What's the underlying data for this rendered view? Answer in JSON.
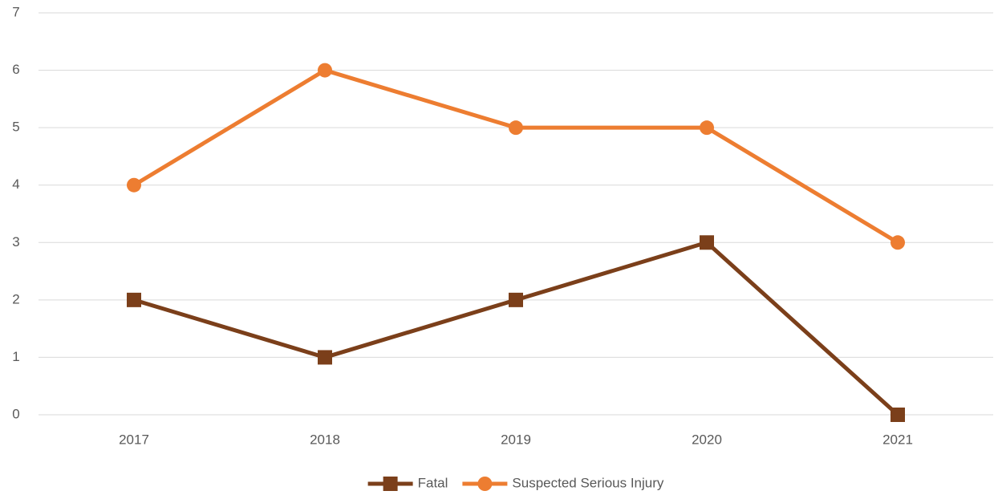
{
  "chart_data": {
    "type": "line",
    "categories": [
      "2017",
      "2018",
      "2019",
      "2020",
      "2021"
    ],
    "series": [
      {
        "name": "Fatal",
        "color": "#7b3f1a",
        "marker": "square",
        "values": [
          2,
          1,
          2,
          3,
          0
        ]
      },
      {
        "name": "Suspected Serious Injury",
        "color": "#ed7d31",
        "marker": "circle",
        "values": [
          4,
          6,
          5,
          5,
          3
        ]
      }
    ],
    "ylim": [
      0,
      7
    ],
    "yticks": [
      0,
      1,
      2,
      3,
      4,
      5,
      6,
      7
    ],
    "grid": true,
    "legend": "bottom"
  }
}
